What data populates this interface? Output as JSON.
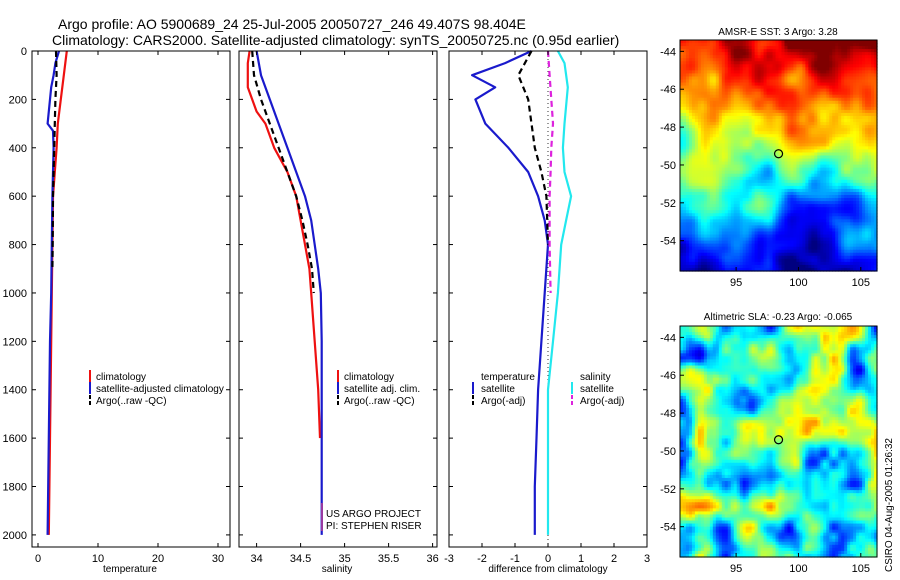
{
  "header": {
    "title_line1": "Argo profile: AO 5900689_24 25-Jul-2005 20050727_246 49.407S 98.404E",
    "title_line2": "Climatology: CARS2000. Satellite-adjusted climatology: synTS_20050725.nc (0.95d earlier)"
  },
  "credit": "CSIRO 04-Aug-2005 01:26:32",
  "colors": {
    "red": "#ee1111",
    "blue": "#1a1acc",
    "black": "#000000",
    "cyan": "#22e8ee",
    "magenta": "#dd22dd"
  },
  "chart_data": [
    {
      "id": "temperature",
      "type": "line",
      "xlabel": "temperature",
      "xlim": [
        -1,
        32
      ],
      "ylim": [
        0,
        2050
      ],
      "y_inverted": true,
      "xticks": [
        0,
        10,
        20,
        30
      ],
      "yticks": [
        0,
        200,
        400,
        600,
        800,
        1000,
        1200,
        1400,
        1600,
        1800,
        2000
      ],
      "series": [
        {
          "name": "climatology",
          "color": "#ee1111",
          "style": "solid",
          "points": [
            [
              4.8,
              0
            ],
            [
              4.3,
              100
            ],
            [
              3.8,
              200
            ],
            [
              3.3,
              300
            ],
            [
              3.1,
              400
            ],
            [
              2.8,
              500
            ],
            [
              2.5,
              600
            ],
            [
              2.4,
              800
            ],
            [
              2.3,
              1000
            ],
            [
              2.2,
              1200
            ],
            [
              2.1,
              1400
            ],
            [
              2.0,
              1600
            ],
            [
              1.9,
              1800
            ],
            [
              1.8,
              2000
            ]
          ]
        },
        {
          "name": "satellite-adjusted climatology",
          "color": "#1a1acc",
          "style": "solid",
          "points": [
            [
              3.5,
              0
            ],
            [
              2.9,
              50
            ],
            [
              2.6,
              100
            ],
            [
              2.2,
              150
            ],
            [
              1.6,
              300
            ],
            [
              2.5,
              330
            ],
            [
              2.6,
              400
            ],
            [
              2.5,
              500
            ],
            [
              2.4,
              600
            ],
            [
              2.3,
              800
            ],
            [
              2.2,
              1000
            ],
            [
              2.0,
              1200
            ],
            [
              1.9,
              1400
            ],
            [
              1.8,
              1600
            ],
            [
              1.7,
              1800
            ],
            [
              1.6,
              2000
            ]
          ]
        },
        {
          "name": "Argo(..raw -QC)",
          "color": "#000000",
          "style": "dashed",
          "points": [
            [
              3.0,
              0
            ],
            [
              3.1,
              100
            ],
            [
              2.9,
              200
            ],
            [
              2.8,
              300
            ],
            [
              2.7,
              400
            ],
            [
              2.6,
              500
            ],
            [
              2.5,
              600
            ],
            [
              2.45,
              800
            ],
            [
              2.4,
              900
            ]
          ]
        }
      ],
      "legend": [
        "climatology",
        "satellite-adjusted climatology",
        "Argo(..raw -QC)"
      ],
      "legend_position": "middle-right"
    },
    {
      "id": "salinity",
      "type": "line",
      "xlabel": "salinity",
      "xlim": [
        33.8,
        36.05
      ],
      "ylim": [
        0,
        2050
      ],
      "y_inverted": true,
      "xticks": [
        34,
        34.5,
        35,
        35.5,
        36
      ],
      "xtick_labels": [
        "34",
        "34.5",
        "35",
        "35.5",
        "36"
      ],
      "series": [
        {
          "name": "climatology",
          "color": "#ee1111",
          "style": "solid",
          "points": [
            [
              33.92,
              0
            ],
            [
              33.9,
              50
            ],
            [
              33.9,
              150
            ],
            [
              34.0,
              250
            ],
            [
              34.1,
              300
            ],
            [
              34.2,
              400
            ],
            [
              34.35,
              500
            ],
            [
              34.45,
              600
            ],
            [
              34.55,
              800
            ],
            [
              34.6,
              900
            ],
            [
              34.62,
              1000
            ],
            [
              34.66,
              1200
            ],
            [
              34.7,
              1400
            ],
            [
              34.72,
              1600
            ]
          ]
        },
        {
          "name": "satellite adj. clim.",
          "color": "#1a1acc",
          "style": "solid",
          "points": [
            [
              34.0,
              0
            ],
            [
              34.05,
              100
            ],
            [
              34.15,
              200
            ],
            [
              34.25,
              300
            ],
            [
              34.35,
              400
            ],
            [
              34.45,
              500
            ],
            [
              34.55,
              600
            ],
            [
              34.62,
              700
            ],
            [
              34.66,
              800
            ],
            [
              34.7,
              900
            ],
            [
              34.73,
              1000
            ],
            [
              34.74,
              1200
            ],
            [
              34.74,
              1400
            ],
            [
              34.74,
              1600
            ],
            [
              34.74,
              1800
            ],
            [
              34.74,
              2000
            ]
          ]
        },
        {
          "name": "Argo(..raw -QC)",
          "color": "#000000",
          "style": "dashed",
          "points": [
            [
              33.95,
              0
            ],
            [
              33.97,
              100
            ],
            [
              34.05,
              200
            ],
            [
              34.15,
              300
            ],
            [
              34.25,
              400
            ],
            [
              34.35,
              500
            ],
            [
              34.45,
              600
            ],
            [
              34.52,
              700
            ],
            [
              34.58,
              800
            ],
            [
              34.63,
              900
            ],
            [
              34.65,
              1000
            ]
          ]
        }
      ],
      "legend": [
        "climatology",
        "satellite adj. clim.",
        "Argo(..raw -QC)"
      ],
      "legend_position": "middle-right",
      "annotation_line1": "US ARGO PROJECT",
      "annotation_line2": "PI: STEPHEN RISER"
    },
    {
      "id": "difference",
      "type": "line",
      "xlabel": "difference from climatology",
      "xlim": [
        -3,
        3
      ],
      "ylim": [
        0,
        2050
      ],
      "y_inverted": true,
      "xticks": [
        -3,
        -2,
        -1,
        0,
        1,
        2,
        3
      ],
      "series": [
        {
          "name": "temperature satellite",
          "color": "#1a1acc",
          "style": "solid",
          "points": [
            [
              -0.5,
              0
            ],
            [
              -1.3,
              50
            ],
            [
              -2.3,
              100
            ],
            [
              -1.6,
              150
            ],
            [
              -2.2,
              200
            ],
            [
              -1.9,
              300
            ],
            [
              -1.2,
              400
            ],
            [
              -0.6,
              500
            ],
            [
              -0.3,
              600
            ],
            [
              -0.1,
              700
            ],
            [
              0.0,
              800
            ],
            [
              -0.1,
              1000
            ],
            [
              -0.2,
              1200
            ],
            [
              -0.3,
              1400
            ],
            [
              -0.35,
              1600
            ],
            [
              -0.4,
              1800
            ],
            [
              -0.4,
              2000
            ]
          ]
        },
        {
          "name": "temperature Argo(-adj)",
          "color": "#000000",
          "style": "dashed",
          "points": [
            [
              -0.5,
              0
            ],
            [
              -0.9,
              100
            ],
            [
              -0.6,
              200
            ],
            [
              -0.5,
              300
            ],
            [
              -0.4,
              400
            ],
            [
              -0.2,
              500
            ],
            [
              -0.05,
              600
            ],
            [
              0.0,
              800
            ]
          ]
        },
        {
          "name": "salinity satellite",
          "color": "#22e8ee",
          "style": "solid",
          "points": [
            [
              0.3,
              0
            ],
            [
              0.5,
              50
            ],
            [
              0.6,
              150
            ],
            [
              0.5,
              300
            ],
            [
              0.45,
              400
            ],
            [
              0.5,
              500
            ],
            [
              0.7,
              600
            ],
            [
              0.55,
              700
            ],
            [
              0.4,
              800
            ],
            [
              0.3,
              1000
            ],
            [
              0.15,
              1200
            ],
            [
              0.0,
              1400
            ],
            [
              0.0,
              1600
            ],
            [
              0.0,
              1800
            ],
            [
              0.0,
              2000
            ]
          ]
        },
        {
          "name": "salinity Argo(-adj)",
          "color": "#dd22dd",
          "style": "dashed",
          "points": [
            [
              0.0,
              0
            ],
            [
              0.05,
              100
            ],
            [
              0.1,
              200
            ],
            [
              0.15,
              300
            ],
            [
              0.1,
              400
            ],
            [
              0.08,
              500
            ],
            [
              0.05,
              600
            ],
            [
              0.05,
              800
            ],
            [
              0.08,
              1000
            ]
          ]
        }
      ],
      "legend_left": [
        "temperature",
        "satellite",
        "Argo(-adj)"
      ],
      "legend_right": [
        "salinity",
        "satellite",
        "Argo(-adj)"
      ],
      "legend_position": "middle"
    },
    {
      "id": "sst_map",
      "type": "heatmap",
      "title": "AMSR-E SST: 3 Argo: 3.28",
      "xticks": [
        95,
        100,
        105
      ],
      "yticks": [
        -44,
        -46,
        -48,
        -50,
        -52,
        -54
      ],
      "xlim": [
        90.5,
        106.3
      ],
      "ylim": [
        -55.6,
        -43.4
      ],
      "float_position": [
        98.404,
        -49.407
      ]
    },
    {
      "id": "sla_map",
      "type": "heatmap",
      "title": "Altimetric SLA: -0.23 Argo: -0.065",
      "xticks": [
        95,
        100,
        105
      ],
      "yticks": [
        -44,
        -46,
        -48,
        -50,
        -52,
        -54
      ],
      "xlim": [
        90.5,
        106.3
      ],
      "ylim": [
        -55.6,
        -43.4
      ],
      "float_position": [
        98.404,
        -49.407
      ]
    }
  ]
}
